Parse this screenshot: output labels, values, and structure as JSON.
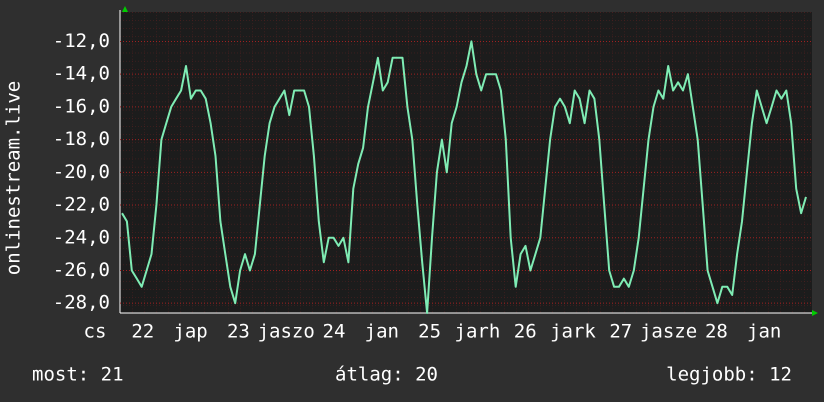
{
  "chart_data": {
    "type": "line",
    "ylabel": "onlinestream.live",
    "x_labels": [
      "cs",
      "22",
      "jap",
      "23",
      "jaszo",
      "24",
      "jan",
      "25",
      "jarh",
      "26",
      "jark",
      "27",
      "jasze",
      "28",
      "jan"
    ],
    "series": [
      {
        "color": "#7fecb4",
        "values": [
          -22.5,
          -23,
          -26,
          -26.5,
          -27,
          -26,
          -25,
          -22,
          -18,
          -17,
          -16,
          -15.5,
          -15,
          -13.5,
          -15.5,
          -15,
          -15,
          -15.5,
          -17,
          -19,
          -23,
          -25,
          -27,
          -28,
          -26,
          -25,
          -26,
          -25,
          -22,
          -19,
          -17,
          -16,
          -15.5,
          -15,
          -16.5,
          -15,
          -15,
          -15,
          -16,
          -19,
          -23,
          -25.5,
          -24,
          -24,
          -24.5,
          -24,
          -25.5,
          -21,
          -19.5,
          -18.5,
          -16,
          -14.5,
          -13,
          -15,
          -14.5,
          -13,
          -13,
          -13,
          -16,
          -18,
          -22,
          -25.5,
          -28.6,
          -24,
          -20,
          -18,
          -20,
          -17,
          -16,
          -14.5,
          -13.5,
          -12,
          -14,
          -15,
          -14,
          -14,
          -14,
          -15,
          -18,
          -24,
          -27,
          -25,
          -24.5,
          -26,
          -25,
          -24,
          -21,
          -18,
          -16,
          -15.5,
          -16,
          -17,
          -15,
          -15.5,
          -17,
          -15,
          -15.5,
          -18,
          -22,
          -26,
          -27,
          -27,
          -26.5,
          -27,
          -26,
          -24,
          -21,
          -18,
          -16,
          -15,
          -15.5,
          -13.5,
          -15,
          -14.5,
          -15,
          -14,
          -16,
          -18,
          -22,
          -26,
          -27,
          -28,
          -27,
          -27,
          -27.5,
          -25,
          -23,
          -20,
          -17,
          -15,
          -16,
          -17,
          -16,
          -15,
          -15.5,
          -15,
          -17,
          -21,
          -22.5,
          -21.5
        ]
      }
    ],
    "ylim": [
      -28.6,
      -10.2
    ],
    "yticks": [
      {
        "value": -12,
        "label": "-12,0"
      },
      {
        "value": -14,
        "label": "-14,0"
      },
      {
        "value": -16,
        "label": "-16,0"
      },
      {
        "value": -18,
        "label": "-18,0"
      },
      {
        "value": -20,
        "label": "-20,0"
      },
      {
        "value": -22,
        "label": "-22,0"
      },
      {
        "value": -24,
        "label": "-24,0"
      },
      {
        "value": -26,
        "label": "-26,0"
      },
      {
        "value": -28,
        "label": "-28,0"
      }
    ],
    "grid": true,
    "footer": {
      "current": "most: 21",
      "average": "átlag: 20",
      "best": "legjobb: 12"
    }
  }
}
